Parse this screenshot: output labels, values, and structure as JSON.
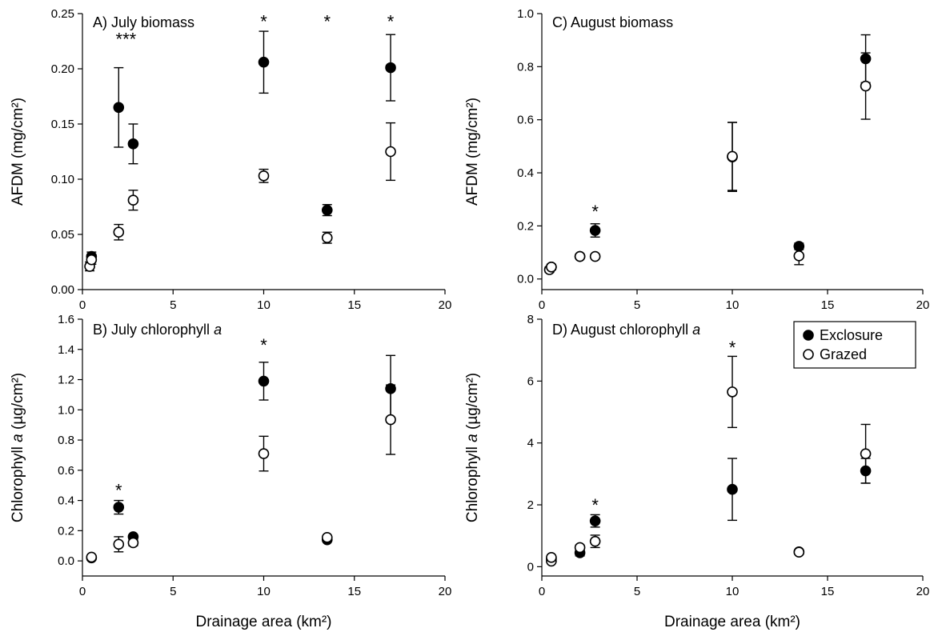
{
  "chart_data": [
    {
      "id": "A",
      "type": "scatter",
      "panel_label": "A) July biomass",
      "ylabel": "AFDM (mg/cm²)",
      "xlabel": "",
      "xlim": [
        0,
        20
      ],
      "ylim": [
        0,
        0.25
      ],
      "x_ticks": [
        "0",
        "5",
        "10",
        "15",
        "20"
      ],
      "y_ticks": [
        "0.00",
        "0.05",
        "0.10",
        "0.15",
        "0.20",
        "0.25"
      ],
      "x_tick_values": [
        0,
        5,
        10,
        15,
        20
      ],
      "y_tick_values": [
        0,
        0.05,
        0.1,
        0.15,
        0.2,
        0.25
      ],
      "series": [
        {
          "name": "Exclosure",
          "marker": "filled",
          "points": [
            {
              "x": 0.5,
              "y": 0.03,
              "err": 0.004
            },
            {
              "x": 2.0,
              "y": 0.165,
              "err": 0.036
            },
            {
              "x": 2.8,
              "y": 0.132,
              "err": 0.018
            },
            {
              "x": 10.0,
              "y": 0.206,
              "err": 0.028
            },
            {
              "x": 13.5,
              "y": 0.072,
              "err": 0.005
            },
            {
              "x": 17.0,
              "y": 0.201,
              "err": 0.03
            }
          ]
        },
        {
          "name": "Grazed",
          "marker": "open",
          "points": [
            {
              "x": 0.4,
              "y": 0.021,
              "err": 0.004
            },
            {
              "x": 0.5,
              "y": 0.027,
              "err": 0.004
            },
            {
              "x": 2.0,
              "y": 0.052,
              "err": 0.007
            },
            {
              "x": 2.8,
              "y": 0.081,
              "err": 0.009
            },
            {
              "x": 10.0,
              "y": 0.103,
              "err": 0.006
            },
            {
              "x": 13.5,
              "y": 0.047,
              "err": 0.005
            },
            {
              "x": 17.0,
              "y": 0.125,
              "err": 0.026
            }
          ]
        }
      ],
      "annotations": [
        {
          "text": "***",
          "x": 2.4,
          "y": 0.227
        },
        {
          "text": "*",
          "x": 10.0,
          "y": 0.243
        },
        {
          "text": "*",
          "x": 13.5,
          "y": 0.243
        },
        {
          "text": "*",
          "x": 17.0,
          "y": 0.243
        }
      ]
    },
    {
      "id": "B",
      "type": "scatter",
      "panel_label": "B) July chlorophyll",
      "panel_label_italic": "a",
      "ylabel": "Chlorophyll",
      "ylabel_italic": "a",
      "ylabel_units": "(µg/cm²)",
      "xlabel": "Drainage area (km²)",
      "xlim": [
        0,
        20
      ],
      "ylim": [
        -0.1,
        1.6
      ],
      "x_ticks": [
        "0",
        "5",
        "10",
        "15",
        "20"
      ],
      "y_ticks": [
        "0.0",
        "0.2",
        "0.4",
        "0.6",
        "0.8",
        "1.0",
        "1.2",
        "1.4",
        "1.6"
      ],
      "x_tick_values": [
        0,
        5,
        10,
        15,
        20
      ],
      "y_tick_values": [
        0,
        0.2,
        0.4,
        0.6,
        0.8,
        1.0,
        1.2,
        1.4,
        1.6
      ],
      "series": [
        {
          "name": "Exclosure",
          "marker": "filled",
          "points": [
            {
              "x": 0.5,
              "y": 0.02,
              "err": 0.01
            },
            {
              "x": 2.0,
              "y": 0.355,
              "err": 0.045
            },
            {
              "x": 2.8,
              "y": 0.16,
              "err": 0.01
            },
            {
              "x": 10.0,
              "y": 1.19,
              "err": 0.125
            },
            {
              "x": 13.5,
              "y": 0.14,
              "err": 0.01
            },
            {
              "x": 17.0,
              "y": 1.14,
              "err": 0.22
            }
          ]
        },
        {
          "name": "Grazed",
          "marker": "open",
          "points": [
            {
              "x": 0.5,
              "y": 0.025,
              "err": 0.01
            },
            {
              "x": 2.0,
              "y": 0.11,
              "err": 0.05
            },
            {
              "x": 2.8,
              "y": 0.12,
              "err": 0.02
            },
            {
              "x": 10.0,
              "y": 0.71,
              "err": 0.115
            },
            {
              "x": 13.5,
              "y": 0.155,
              "err": 0.01
            },
            {
              "x": 17.0,
              "y": 0.935,
              "err": 0.23
            }
          ]
        }
      ],
      "annotations": [
        {
          "text": "*",
          "x": 2.0,
          "y": 0.47
        },
        {
          "text": "*",
          "x": 10.0,
          "y": 1.43
        }
      ]
    },
    {
      "id": "C",
      "type": "scatter",
      "panel_label": "C) August biomass",
      "ylabel": "AFDM (mg/cm²)",
      "xlabel": "",
      "xlim": [
        0,
        20
      ],
      "ylim": [
        -0.04,
        1.0
      ],
      "x_ticks": [
        "0",
        "5",
        "10",
        "15",
        "20"
      ],
      "y_ticks": [
        "0.0",
        "0.2",
        "0.4",
        "0.6",
        "0.8",
        "1.0"
      ],
      "x_tick_values": [
        0,
        5,
        10,
        15,
        20
      ],
      "y_tick_values": [
        0,
        0.2,
        0.4,
        0.6,
        0.8,
        1.0
      ],
      "series": [
        {
          "name": "Exclosure",
          "marker": "filled",
          "points": [
            {
              "x": 0.5,
              "y": 0.045,
              "err": 0.01
            },
            {
              "x": 2.0,
              "y": 0.085,
              "err": 0.005
            },
            {
              "x": 2.8,
              "y": 0.183,
              "err": 0.025
            },
            {
              "x": 10.0,
              "y": 0.46,
              "err": 0.13
            },
            {
              "x": 13.5,
              "y": 0.123,
              "err": 0.012
            },
            {
              "x": 17.0,
              "y": 0.83,
              "err": 0.09
            }
          ]
        },
        {
          "name": "Grazed",
          "marker": "open",
          "points": [
            {
              "x": 0.4,
              "y": 0.035,
              "err": 0.01
            },
            {
              "x": 0.5,
              "y": 0.045,
              "err": 0.01
            },
            {
              "x": 2.0,
              "y": 0.085,
              "err": 0.005
            },
            {
              "x": 2.8,
              "y": 0.085,
              "err": 0.005
            },
            {
              "x": 10.0,
              "y": 0.462,
              "err": 0.128
            },
            {
              "x": 13.5,
              "y": 0.087,
              "err": 0.033
            },
            {
              "x": 17.0,
              "y": 0.727,
              "err": 0.125
            }
          ]
        }
      ],
      "annotations": [
        {
          "text": "*",
          "x": 2.8,
          "y": 0.255
        }
      ]
    },
    {
      "id": "D",
      "type": "scatter",
      "panel_label": "D) August chlorophyll",
      "panel_label_italic": "a",
      "ylabel": "Chlorophyll",
      "ylabel_italic": "a",
      "ylabel_units": "(µg/cm²)",
      "xlabel": "Drainage area (km²)",
      "xlim": [
        0,
        20
      ],
      "ylim": [
        -0.3,
        8
      ],
      "x_ticks": [
        "0",
        "5",
        "10",
        "15",
        "20"
      ],
      "y_ticks": [
        "0",
        "2",
        "4",
        "6",
        "8"
      ],
      "x_tick_values": [
        0,
        5,
        10,
        15,
        20
      ],
      "y_tick_values": [
        0,
        2,
        4,
        6,
        8
      ],
      "series": [
        {
          "name": "Exclosure",
          "marker": "filled",
          "points": [
            {
              "x": 0.5,
              "y": 0.25,
              "err": 0.05
            },
            {
              "x": 2.0,
              "y": 0.45,
              "err": 0.1
            },
            {
              "x": 2.8,
              "y": 1.48,
              "err": 0.2
            },
            {
              "x": 10.0,
              "y": 2.5,
              "err": 1.0
            },
            {
              "x": 13.5,
              "y": 0.48,
              "err": 0.05
            },
            {
              "x": 17.0,
              "y": 3.1,
              "err": 0.4
            }
          ]
        },
        {
          "name": "Grazed",
          "marker": "open",
          "points": [
            {
              "x": 0.5,
              "y": 0.18,
              "err": 0.05
            },
            {
              "x": 0.5,
              "y": 0.3,
              "err": 0.05
            },
            {
              "x": 2.0,
              "y": 0.62,
              "err": 0.08
            },
            {
              "x": 2.8,
              "y": 0.82,
              "err": 0.2
            },
            {
              "x": 10.0,
              "y": 5.65,
              "err": 1.15
            },
            {
              "x": 13.5,
              "y": 0.47,
              "err": 0.05
            },
            {
              "x": 17.0,
              "y": 3.65,
              "err": 0.95
            }
          ]
        }
      ],
      "annotations": [
        {
          "text": "*",
          "x": 2.8,
          "y": 2.0
        },
        {
          "text": "*",
          "x": 10.0,
          "y": 7.1
        }
      ],
      "legend": {
        "location": "top-right",
        "entries": [
          {
            "label": "Exclosure",
            "marker": "filled"
          },
          {
            "label": "Grazed",
            "marker": "open"
          }
        ]
      }
    }
  ]
}
